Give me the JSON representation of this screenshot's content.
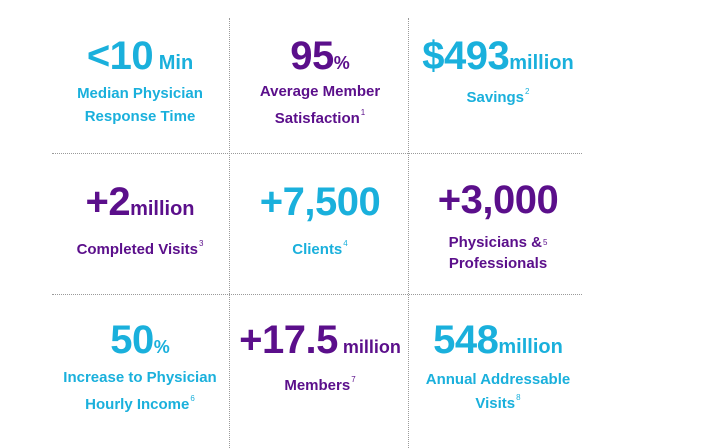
{
  "colors": {
    "cyan": "#1ab0dc",
    "purple": "#5b0f8b",
    "divider": "#9a9a9a"
  },
  "stats": [
    {
      "value": "<10",
      "unit": " Min",
      "label_lines": [
        "Median Physician",
        "Response Time"
      ],
      "footnote": ""
    },
    {
      "value": "95",
      "unit": "%",
      "label_lines": [
        "Average Member",
        "Satisfaction"
      ],
      "footnote": "1"
    },
    {
      "value": "$493",
      "unit": "million",
      "label_lines": [
        "Savings"
      ],
      "footnote": "2"
    },
    {
      "value": "+2",
      "unit": "million",
      "label_lines": [
        "Completed Visits"
      ],
      "footnote": "3"
    },
    {
      "value": "+7,500",
      "unit": "",
      "label_lines": [
        "Clients"
      ],
      "footnote": "4"
    },
    {
      "value": "+3,000",
      "unit": "",
      "label_lines": [
        "Physicians &",
        "Professionals"
      ],
      "footnote": "5"
    },
    {
      "value": "50",
      "unit": "%",
      "label_lines": [
        "Increase to Physician",
        "Hourly Income"
      ],
      "footnote": "6"
    },
    {
      "value": "+17.5",
      "unit": " million",
      "label_lines": [
        "Members"
      ],
      "footnote": "7"
    },
    {
      "value": "548",
      "unit": "million",
      "label_lines": [
        "Annual Addressable",
        "Visits"
      ],
      "footnote": "8"
    }
  ]
}
